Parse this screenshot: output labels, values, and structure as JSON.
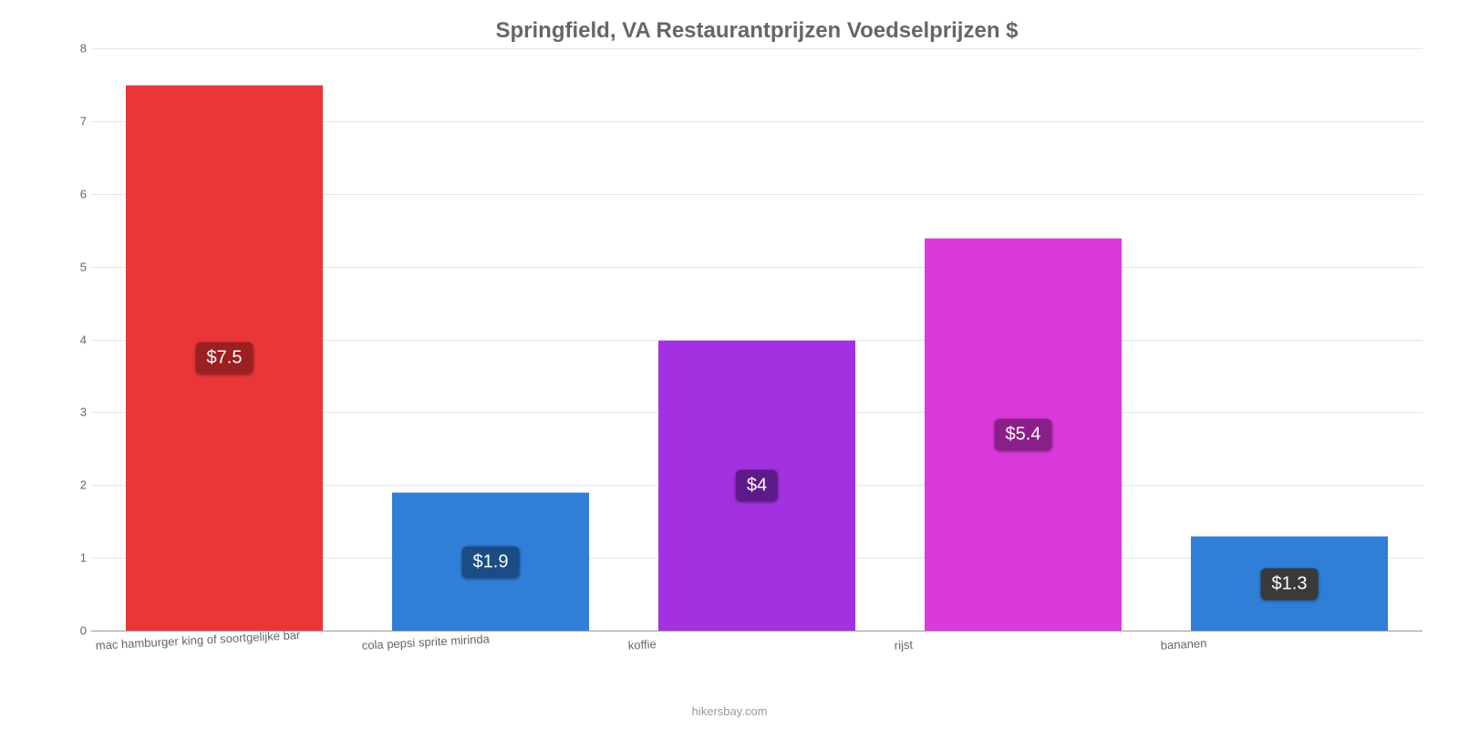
{
  "chart": {
    "type": "bar",
    "title": "Springfield, VA Restaurantprijzen Voedselprijzen $",
    "title_color": "#666666",
    "title_fontsize": 24,
    "background_color": "#ffffff",
    "grid_color": "#e6e6e6",
    "axis_color": "#999999",
    "label_color": "#666666",
    "label_fontsize": 13,
    "value_label_fontsize": 20,
    "bar_width": 0.74,
    "ylim": [
      0,
      8
    ],
    "yticks": [
      0,
      1,
      2,
      3,
      4,
      5,
      6,
      7,
      8
    ],
    "categories": [
      "mac hamburger king of soortgelijke bar",
      "cola pepsi sprite mirinda",
      "koffie",
      "rijst",
      "bananen"
    ],
    "values": [
      7.5,
      1.9,
      4,
      5.4,
      1.3
    ],
    "value_labels": [
      "$7.5",
      "$1.9",
      "$4",
      "$5.4",
      "$1.3"
    ],
    "bar_colors": [
      "#eb3639",
      "#2f7ed8",
      "#a232e0",
      "#d93ad9",
      "#2f7ed8"
    ],
    "label_bg_colors": [
      "#9c1f22",
      "#1a4d85",
      "#5f1a8a",
      "#8a1f8a",
      "#3a3a3a"
    ],
    "attribution": "hikersbay.com",
    "x_label_rotation_deg": -3
  }
}
